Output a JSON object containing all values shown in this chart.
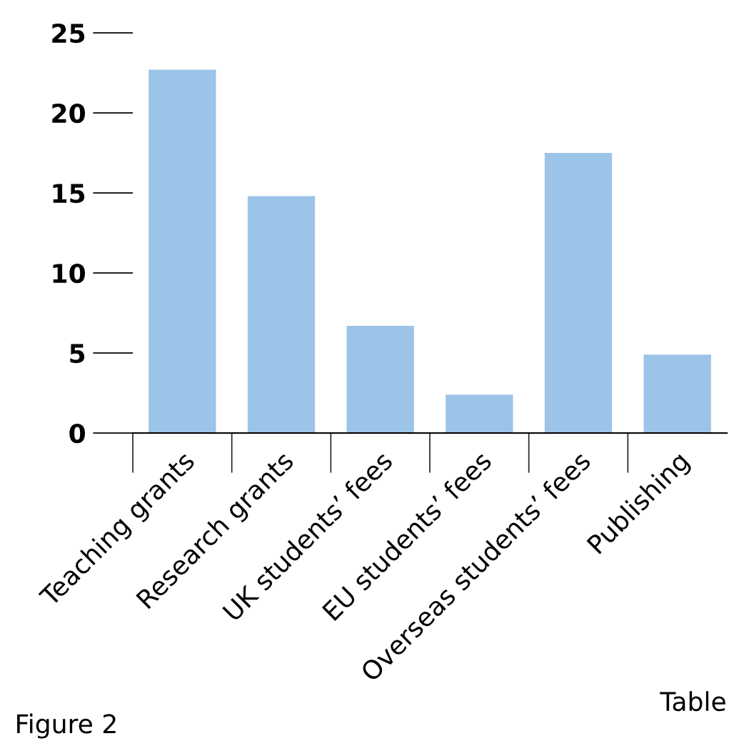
{
  "chart_data": {
    "type": "bar",
    "categories": [
      "Teaching grants",
      "Research grants",
      "UK students’ fees",
      "EU students’ fees",
      "Overseas students’ fees",
      "Publishing"
    ],
    "values": [
      22.7,
      14.8,
      6.7,
      2.4,
      17.5,
      4.9
    ],
    "color": "#9cc3e8",
    "ylim": [
      0,
      25
    ],
    "yticks": [
      0,
      5,
      10,
      15,
      20,
      25
    ],
    "grid": false,
    "legend": false,
    "annotations": [
      "Figure 2",
      "Table"
    ]
  }
}
